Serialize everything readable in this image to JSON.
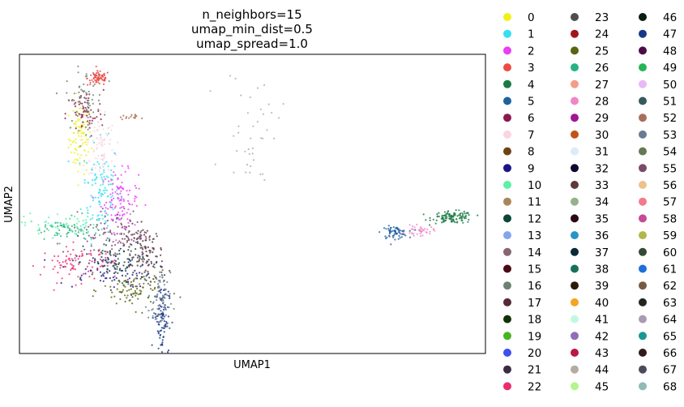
{
  "chart_data": {
    "type": "scatter",
    "title": [
      "n_neighbors=15",
      "umap_min_dist=0.5",
      "umap_spread=1.0"
    ],
    "xlabel": "UMAP1",
    "ylabel": "UMAP2",
    "ticks": false,
    "grid": false,
    "legend_placement": "right, outside plot, 3 columns",
    "legend": [
      {
        "label": "0",
        "color": "#f0f018"
      },
      {
        "label": "1",
        "color": "#33e0f0"
      },
      {
        "label": "2",
        "color": "#ea3ef5"
      },
      {
        "label": "3",
        "color": "#ee4a44"
      },
      {
        "label": "4",
        "color": "#1a7a44"
      },
      {
        "label": "5",
        "color": "#1f62a0"
      },
      {
        "label": "6",
        "color": "#8b1a50"
      },
      {
        "label": "7",
        "color": "#fcd3e1"
      },
      {
        "label": "8",
        "color": "#6e4214"
      },
      {
        "label": "9",
        "color": "#1c158a"
      },
      {
        "label": "10",
        "color": "#5cf2a6"
      },
      {
        "label": "11",
        "color": "#a98659"
      },
      {
        "label": "12",
        "color": "#0e4538"
      },
      {
        "label": "13",
        "color": "#84a4ef"
      },
      {
        "label": "14",
        "color": "#86676e"
      },
      {
        "label": "15",
        "color": "#4a0a14"
      },
      {
        "label": "16",
        "color": "#6b8272"
      },
      {
        "label": "17",
        "color": "#552a3a"
      },
      {
        "label": "18",
        "color": "#113209"
      },
      {
        "label": "19",
        "color": "#46b522"
      },
      {
        "label": "20",
        "color": "#3c4ff0"
      },
      {
        "label": "21",
        "color": "#3a2c45"
      },
      {
        "label": "22",
        "color": "#ea2d70"
      },
      {
        "label": "23",
        "color": "#4e4e4e"
      },
      {
        "label": "24",
        "color": "#a0161c"
      },
      {
        "label": "25",
        "color": "#5a6512"
      },
      {
        "label": "26",
        "color": "#24b386"
      },
      {
        "label": "27",
        "color": "#f39d8a"
      },
      {
        "label": "28",
        "color": "#f086c8"
      },
      {
        "label": "29",
        "color": "#a01693"
      },
      {
        "label": "30",
        "color": "#c05418"
      },
      {
        "label": "31",
        "color": "#ddebf7"
      },
      {
        "label": "32",
        "color": "#0b0a2e"
      },
      {
        "label": "33",
        "color": "#5f3a38"
      },
      {
        "label": "34",
        "color": "#93b38b"
      },
      {
        "label": "35",
        "color": "#2a0814"
      },
      {
        "label": "36",
        "color": "#2895c8"
      },
      {
        "label": "37",
        "color": "#0c2a36"
      },
      {
        "label": "38",
        "color": "#16715a"
      },
      {
        "label": "39",
        "color": "#2a1a07"
      },
      {
        "label": "40",
        "color": "#f2a624"
      },
      {
        "label": "41",
        "color": "#c3f7e4"
      },
      {
        "label": "42",
        "color": "#8e6eb8"
      },
      {
        "label": "43",
        "color": "#b81848"
      },
      {
        "label": "44",
        "color": "#b3aca1"
      },
      {
        "label": "45",
        "color": "#b3f58d"
      },
      {
        "label": "46",
        "color": "#081e0f"
      },
      {
        "label": "47",
        "color": "#17378a"
      },
      {
        "label": "48",
        "color": "#4e0c45"
      },
      {
        "label": "49",
        "color": "#25b557"
      },
      {
        "label": "50",
        "color": "#e7b9f6"
      },
      {
        "label": "51",
        "color": "#355a5e"
      },
      {
        "label": "52",
        "color": "#a7705a"
      },
      {
        "label": "53",
        "color": "#697a94"
      },
      {
        "label": "54",
        "color": "#637a54"
      },
      {
        "label": "55",
        "color": "#7a4a6a"
      },
      {
        "label": "56",
        "color": "#efc18b"
      },
      {
        "label": "57",
        "color": "#f27a8c"
      },
      {
        "label": "58",
        "color": "#c64a96"
      },
      {
        "label": "59",
        "color": "#b3b64a"
      },
      {
        "label": "60",
        "color": "#334a35"
      },
      {
        "label": "61",
        "color": "#1e70d8"
      },
      {
        "label": "62",
        "color": "#765a42"
      },
      {
        "label": "63",
        "color": "#22251e"
      },
      {
        "label": "64",
        "color": "#a99ab3"
      },
      {
        "label": "65",
        "color": "#1a9696"
      },
      {
        "label": "66",
        "color": "#301a1a"
      },
      {
        "label": "67",
        "color": "#4d4a5c"
      },
      {
        "label": "68",
        "color": "#8fbab6"
      }
    ],
    "clusters": [
      {
        "label": "0",
        "x": 0.13,
        "y": 0.72,
        "sx": 0.012,
        "sy": 0.06,
        "n": 90
      },
      {
        "label": "1",
        "x": 0.175,
        "y": 0.55,
        "sx": 0.02,
        "sy": 0.08,
        "n": 120
      },
      {
        "label": "2",
        "x": 0.215,
        "y": 0.51,
        "sx": 0.02,
        "sy": 0.05,
        "n": 110
      },
      {
        "label": "3",
        "x": 0.17,
        "y": 0.92,
        "sx": 0.012,
        "sy": 0.012,
        "n": 70
      },
      {
        "label": "4",
        "x": 0.93,
        "y": 0.455,
        "sx": 0.022,
        "sy": 0.01,
        "n": 110
      },
      {
        "label": "5",
        "x": 0.805,
        "y": 0.405,
        "sx": 0.014,
        "sy": 0.01,
        "n": 70
      },
      {
        "label": "6",
        "x": 0.14,
        "y": 0.8,
        "sx": 0.02,
        "sy": 0.04,
        "n": 60
      },
      {
        "label": "7",
        "x": 0.175,
        "y": 0.7,
        "sx": 0.015,
        "sy": 0.06,
        "n": 80
      },
      {
        "label": "9",
        "x": 0.185,
        "y": 0.28,
        "sx": 0.05,
        "sy": 0.03,
        "n": 80
      },
      {
        "label": "10",
        "x": 0.09,
        "y": 0.43,
        "sx": 0.04,
        "sy": 0.02,
        "n": 60
      },
      {
        "label": "12",
        "x": 0.22,
        "y": 0.3,
        "sx": 0.04,
        "sy": 0.04,
        "n": 90
      },
      {
        "label": "16",
        "x": 0.14,
        "y": 0.85,
        "sx": 0.02,
        "sy": 0.05,
        "n": 70
      },
      {
        "label": "17",
        "x": 0.27,
        "y": 0.33,
        "sx": 0.02,
        "sy": 0.05,
        "n": 100
      },
      {
        "label": "22",
        "x": 0.125,
        "y": 0.3,
        "sx": 0.04,
        "sy": 0.03,
        "n": 90
      },
      {
        "label": "25",
        "x": 0.25,
        "y": 0.21,
        "sx": 0.035,
        "sy": 0.03,
        "n": 90
      },
      {
        "label": "26",
        "x": 0.1,
        "y": 0.41,
        "sx": 0.04,
        "sy": 0.02,
        "n": 60
      },
      {
        "label": "28",
        "x": 0.86,
        "y": 0.41,
        "sx": 0.015,
        "sy": 0.008,
        "n": 40
      },
      {
        "label": "44",
        "x": 0.5,
        "y": 0.75,
        "sx": 0.03,
        "sy": 0.1,
        "n": 40
      },
      {
        "label": "47",
        "x": 0.305,
        "y": 0.12,
        "sx": 0.008,
        "sy": 0.06,
        "n": 90
      },
      {
        "label": "52",
        "x": 0.235,
        "y": 0.79,
        "sx": 0.01,
        "sy": 0.004,
        "n": 15
      },
      {
        "label": "53",
        "x": 0.3,
        "y": 0.17,
        "sx": 0.012,
        "sy": 0.05,
        "n": 60
      },
      {
        "label": "55",
        "x": 0.21,
        "y": 0.4,
        "sx": 0.035,
        "sy": 0.04,
        "n": 100
      }
    ]
  }
}
